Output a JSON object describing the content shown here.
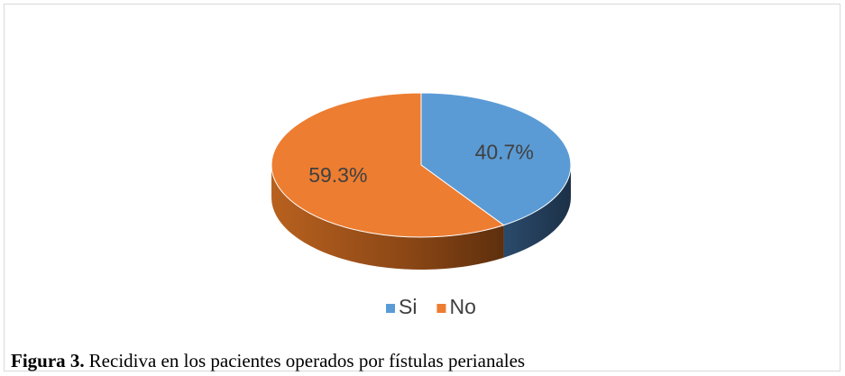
{
  "chart_data": {
    "type": "pie",
    "categories": [
      "Si",
      "No"
    ],
    "values": [
      40.7,
      59.3
    ],
    "value_labels": [
      "40.7%",
      "59.3%"
    ],
    "colors": [
      "#5b9bd5",
      "#ed7d31"
    ],
    "legend": "bottom"
  },
  "figure_label": "Figura 3.",
  "caption": "Recidiva en los pacientes operados por fístulas perianales"
}
